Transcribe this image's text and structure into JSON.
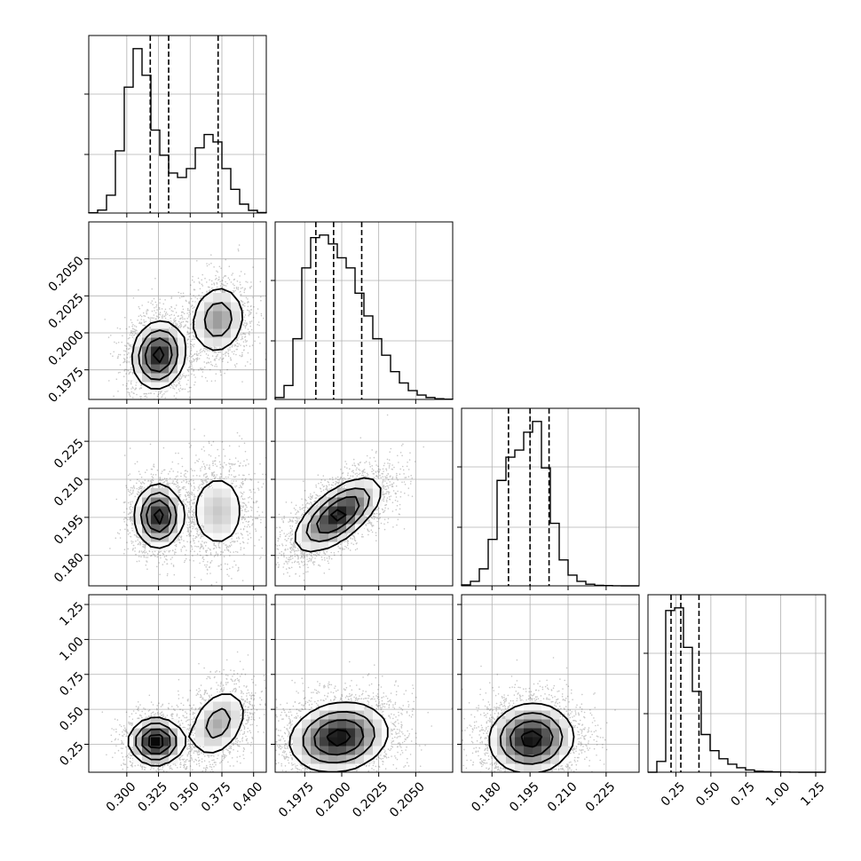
{
  "chart_data": {
    "type": "corner",
    "parameters": [
      "",
      "",
      "",
      ""
    ],
    "ranges": [
      [
        0.27,
        0.41
      ],
      [
        0.1955,
        0.2075
      ],
      [
        0.168,
        0.238
      ],
      [
        0.05,
        1.32
      ]
    ],
    "axis_ticks": [
      [
        "0.300",
        "0.325",
        "0.350",
        "0.375",
        "0.400"
      ],
      [
        "0.1975",
        "0.2000",
        "0.2025",
        "0.2050"
      ],
      [
        "0.180",
        "0.195",
        "0.210",
        "0.225"
      ],
      [
        "0.25",
        "0.50",
        "0.75",
        "1.00",
        "1.25"
      ]
    ],
    "grid": true,
    "quantile_lines": [
      [
        0.3185,
        0.333,
        0.372
      ],
      [
        0.19825,
        0.19945,
        0.20135
      ],
      [
        0.1865,
        0.195,
        0.2025
      ],
      [
        0.215,
        0.285,
        0.415
      ]
    ],
    "histograms": [
      {
        "bin_edges": [
          0.27,
          0.277,
          0.284,
          0.291,
          0.298,
          0.305,
          0.312,
          0.319,
          0.326,
          0.333,
          0.34,
          0.347,
          0.354,
          0.361,
          0.368,
          0.375,
          0.382,
          0.389,
          0.396,
          0.403,
          0.41
        ],
        "counts": [
          2,
          20,
          120,
          420,
          850,
          1110,
          930,
          560,
          390,
          270,
          240,
          300,
          440,
          530,
          480,
          300,
          160,
          60,
          18,
          3
        ]
      },
      {
        "bin_edges": [
          0.1955,
          0.1961,
          0.1967,
          0.1973,
          0.1979,
          0.1985,
          0.1991,
          0.1997,
          0.2003,
          0.2009,
          0.2015,
          0.2021,
          0.2027,
          0.2033,
          0.2039,
          0.2045,
          0.2051,
          0.2057,
          0.2063,
          0.2069,
          0.2075
        ],
        "counts": [
          15,
          110,
          480,
          1040,
          1280,
          1300,
          1230,
          1120,
          1040,
          840,
          660,
          480,
          350,
          220,
          130,
          70,
          35,
          15,
          6,
          2
        ]
      },
      {
        "bin_edges": [
          0.168,
          0.1715,
          0.175,
          0.1785,
          0.182,
          0.1855,
          0.189,
          0.1925,
          0.196,
          0.1995,
          0.203,
          0.2065,
          0.21,
          0.2135,
          0.217,
          0.2205,
          0.224,
          0.2275,
          0.231,
          0.2345,
          0.238
        ],
        "counts": [
          10,
          50,
          190,
          520,
          1180,
          1440,
          1520,
          1720,
          1840,
          1320,
          700,
          290,
          120,
          50,
          18,
          6,
          3,
          1,
          0,
          0
        ]
      },
      {
        "bin_edges": [
          0.05,
          0.1135,
          0.177,
          0.2405,
          0.304,
          0.3675,
          0.431,
          0.4945,
          0.558,
          0.6215,
          0.685,
          0.7485,
          0.812,
          0.8755,
          0.939,
          1.0025,
          1.066,
          1.1295,
          1.193,
          1.2565,
          1.32
        ],
        "counts": [
          0,
          120,
          1800,
          1830,
          1390,
          900,
          420,
          240,
          150,
          90,
          50,
          25,
          12,
          8,
          4,
          2,
          1,
          0,
          0,
          0
        ]
      }
    ],
    "panels_2d": [
      {
        "row": 1,
        "col": 0,
        "modes": [
          {
            "x": 0.325,
            "y": 0.1985,
            "sx": 0.01,
            "sy": 0.0011,
            "rho": 0.1,
            "w": 0.62
          },
          {
            "x": 0.372,
            "y": 0.2009,
            "sx": 0.011,
            "sy": 0.0012,
            "rho": 0.1,
            "w": 0.38
          }
        ]
      },
      {
        "row": 2,
        "col": 0,
        "modes": [
          {
            "x": 0.325,
            "y": 0.1955,
            "sx": 0.009,
            "sy": 0.006,
            "rho": 0.0,
            "w": 0.62
          },
          {
            "x": 0.372,
            "y": 0.1975,
            "sx": 0.012,
            "sy": 0.0085,
            "rho": 0.0,
            "w": 0.38
          }
        ]
      },
      {
        "row": 2,
        "col": 1,
        "modes": [
          {
            "x": 0.19975,
            "y": 0.196,
            "sx": 0.0014,
            "sy": 0.007,
            "rho": 0.65,
            "w": 1.0
          }
        ]
      },
      {
        "row": 3,
        "col": 0,
        "modes": [
          {
            "x": 0.323,
            "y": 0.27,
            "sx": 0.01,
            "sy": 0.08,
            "rho": 0.0,
            "w": 0.58
          },
          {
            "x": 0.372,
            "y": 0.4,
            "sx": 0.012,
            "sy": 0.13,
            "rho": 0.35,
            "w": 0.42
          }
        ]
      },
      {
        "row": 3,
        "col": 1,
        "modes": [
          {
            "x": 0.1998,
            "y": 0.3,
            "sx": 0.0016,
            "sy": 0.12,
            "rho": 0.15,
            "w": 1.0
          }
        ]
      },
      {
        "row": 3,
        "col": 2,
        "modes": [
          {
            "x": 0.1955,
            "y": 0.29,
            "sx": 0.008,
            "sy": 0.12,
            "rho": 0.05,
            "w": 1.0
          }
        ]
      }
    ]
  }
}
